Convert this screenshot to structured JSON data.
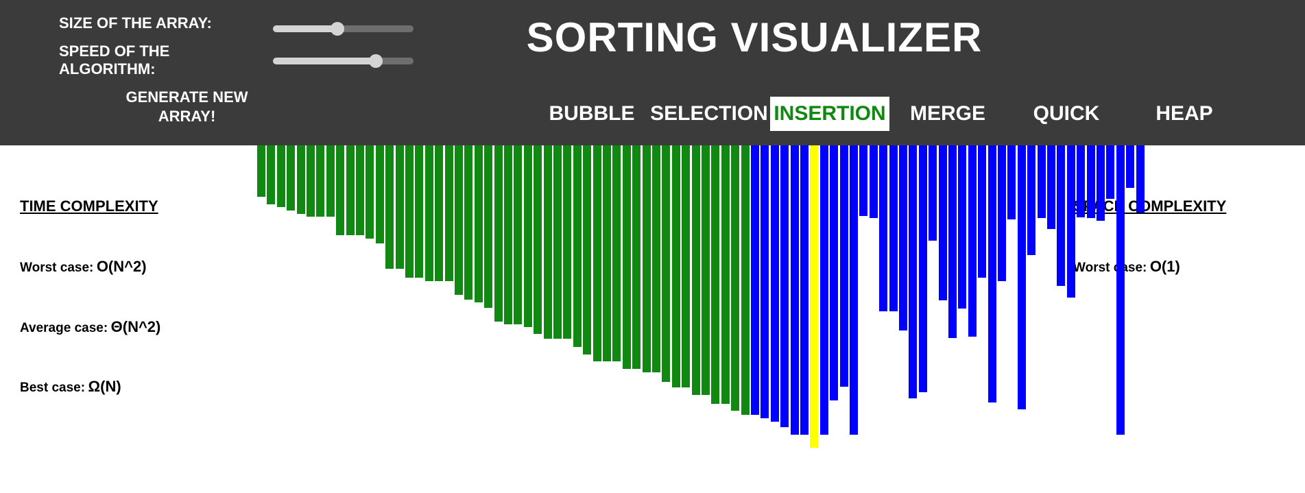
{
  "controls": {
    "size_label": "SIZE OF THE ARRAY:",
    "speed_label": "SPEED OF THE ALGORITHM:",
    "size_value": 0.46,
    "speed_value": 0.73,
    "generate_label": "GENERATE NEW ARRAY!"
  },
  "title": "SORTING VISUALIZER",
  "algorithms": [
    {
      "label": "BUBBLE",
      "active": false
    },
    {
      "label": "SELECTION",
      "active": false
    },
    {
      "label": "INSERTION",
      "active": true
    },
    {
      "label": "MERGE",
      "active": false
    },
    {
      "label": "QUICK",
      "active": false
    },
    {
      "label": "HEAP",
      "active": false
    }
  ],
  "time_complexity": {
    "heading": "TIME COMPLEXITY",
    "worst_label": "Worst case:",
    "worst_value": "O(N^2)",
    "average_label": "Average case:",
    "average_value": "Θ(N^2)",
    "best_label": "Best case:",
    "best_value": "Ω(N)"
  },
  "space_complexity": {
    "heading": "SPACE COMPLEXITY",
    "worst_label": "Worst case:",
    "worst_value": "O(1)"
  },
  "colors": {
    "header_bg": "#3b3b3b",
    "sorted": "#118811",
    "unsorted": "#0000ff",
    "current": "#ffff00",
    "active_tab_text": "#118811"
  },
  "array": {
    "values": [
      75,
      86,
      90,
      95,
      100,
      104,
      104,
      104,
      131,
      131,
      131,
      136,
      143,
      180,
      180,
      193,
      193,
      198,
      198,
      198,
      218,
      225,
      229,
      237,
      257,
      261,
      261,
      265,
      275,
      282,
      282,
      282,
      294,
      305,
      315,
      315,
      315,
      326,
      326,
      331,
      331,
      345,
      353,
      353,
      364,
      364,
      377,
      377,
      387,
      393,
      393,
      398,
      403,
      411,
      422,
      422,
      441,
      422,
      372,
      352,
      422,
      103,
      106,
      242,
      242,
      270,
      369,
      360,
      139,
      226,
      281,
      238,
      279,
      193,
      375,
      198,
      108,
      385,
      160,
      106,
      122,
      205,
      222,
      105,
      106,
      110,
      78,
      422,
      62,
      98
    ],
    "states": [
      "s",
      "s",
      "s",
      "s",
      "s",
      "s",
      "s",
      "s",
      "s",
      "s",
      "s",
      "s",
      "s",
      "s",
      "s",
      "s",
      "s",
      "s",
      "s",
      "s",
      "s",
      "s",
      "s",
      "s",
      "s",
      "s",
      "s",
      "s",
      "s",
      "s",
      "s",
      "s",
      "s",
      "s",
      "s",
      "s",
      "s",
      "s",
      "s",
      "s",
      "s",
      "s",
      "s",
      "s",
      "s",
      "s",
      "s",
      "s",
      "s",
      "s",
      "u",
      "u",
      "u",
      "u",
      "u",
      "u",
      "c",
      "u",
      "u",
      "u",
      "u",
      "u",
      "u",
      "u",
      "u",
      "u",
      "u",
      "u",
      "u",
      "u",
      "u",
      "u",
      "u",
      "u",
      "u",
      "u",
      "u",
      "u",
      "u",
      "u",
      "u",
      "u",
      "u",
      "u",
      "u",
      "u",
      "u",
      "u",
      "u",
      "u"
    ]
  }
}
